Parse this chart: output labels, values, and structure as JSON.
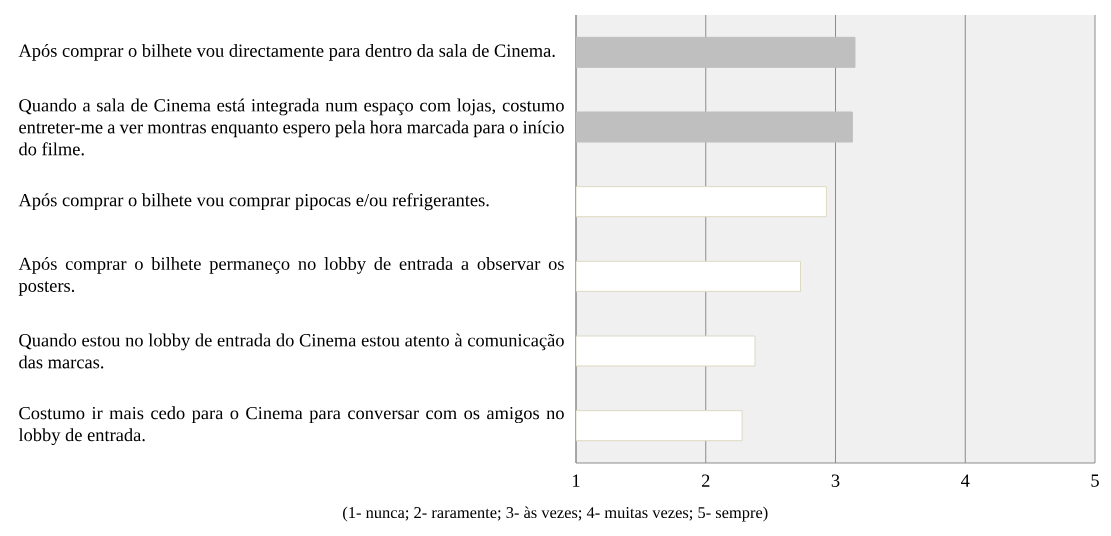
{
  "chart_data": {
    "type": "bar",
    "orientation": "horizontal",
    "categories": [
      "Após comprar o bilhete vou directamente para dentro da sala de Cinema.",
      "Quando a sala de Cinema está integrada num espaço com lojas, costumo entreter-me a ver montras enquanto espero pela hora marcada para o início do filme.",
      "Após comprar o bilhete vou comprar pipocas e/ou refrigerantes.",
      "Após comprar o bilhete permaneço no lobby de entrada a observar os posters.",
      "Quando estou no lobby de entrada do Cinema estou atento à comunicação das marcas.",
      "Costumo ir mais cedo para o Cinema para conversar com os amigos no lobby de entrada."
    ],
    "values": [
      3.15,
      3.13,
      2.93,
      2.73,
      2.38,
      2.28
    ],
    "colors": [
      "#bfbfbf",
      "#bfbfbf",
      "#ffffff",
      "#ffffff",
      "#ffffff",
      "#ffffff"
    ],
    "xlim": [
      1,
      5
    ],
    "xticks": [
      1,
      2,
      3,
      4,
      5
    ],
    "grid": "x",
    "xlabel": "(1- nunca; 2- raramente; 3- às vezes; 4- muitas vezes; 5- sempre)"
  }
}
